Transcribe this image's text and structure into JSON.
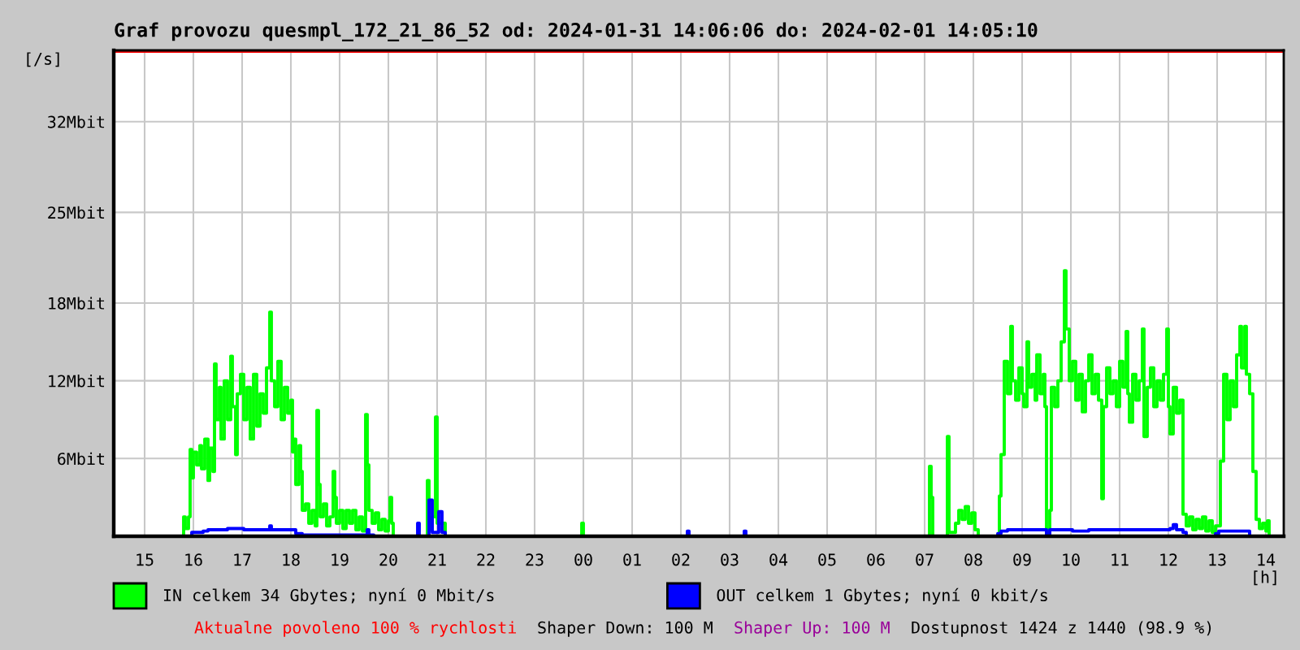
{
  "chart_data": {
    "type": "step",
    "title": "Graf provozu quesmpl_172_21_86_52 od: 2024-01-31 14:06:06 do: 2024-02-01 14:05:10",
    "xlabel": "[h]",
    "ylabel": "[/s]",
    "xlim": [
      "2024-01-31T14:22",
      "2024-02-01T14:22"
    ],
    "xticks": [
      {
        "value": "2024-01-31T15:00",
        "label": "15"
      },
      {
        "value": "2024-01-31T16:00",
        "label": "16"
      },
      {
        "value": "2024-01-31T17:00",
        "label": "17"
      },
      {
        "value": "2024-01-31T18:00",
        "label": "18"
      },
      {
        "value": "2024-01-31T19:00",
        "label": "19"
      },
      {
        "value": "2024-01-31T20:00",
        "label": "20"
      },
      {
        "value": "2024-01-31T21:00",
        "label": "21"
      },
      {
        "value": "2024-01-31T22:00",
        "label": "22"
      },
      {
        "value": "2024-01-31T23:00",
        "label": "23"
      },
      {
        "value": "2024-02-01T00:00",
        "label": "00"
      },
      {
        "value": "2024-02-01T01:00",
        "label": "01"
      },
      {
        "value": "2024-02-01T02:00",
        "label": "02"
      },
      {
        "value": "2024-02-01T03:00",
        "label": "03"
      },
      {
        "value": "2024-02-01T04:00",
        "label": "04"
      },
      {
        "value": "2024-02-01T05:00",
        "label": "05"
      },
      {
        "value": "2024-02-01T06:00",
        "label": "06"
      },
      {
        "value": "2024-02-01T07:00",
        "label": "07"
      },
      {
        "value": "2024-02-01T08:00",
        "label": "08"
      },
      {
        "value": "2024-02-01T09:00",
        "label": "09"
      },
      {
        "value": "2024-02-01T10:00",
        "label": "10"
      },
      {
        "value": "2024-02-01T11:00",
        "label": "11"
      },
      {
        "value": "2024-02-01T12:00",
        "label": "12"
      },
      {
        "value": "2024-02-01T13:00",
        "label": "13"
      },
      {
        "value": "2024-02-01T14:00",
        "label": "14"
      }
    ],
    "ylim": [
      0,
      37.5
    ],
    "yticks": [
      {
        "value": 6,
        "label": "6Mbit"
      },
      {
        "value": 12,
        "label": "12Mbit"
      },
      {
        "value": 18,
        "label": "18Mbit"
      },
      {
        "value": 25,
        "label": "25Mbit"
      },
      {
        "value": 32,
        "label": "32Mbit"
      }
    ],
    "grid": true,
    "legend": "bottom",
    "line_style": "solid",
    "ref_lines": [
      {
        "axis": "y",
        "value": 37.5,
        "color": "#ff0000"
      }
    ],
    "series": [
      {
        "name": "IN celkem 34 Gbytes; nyní 0 Mbit/s",
        "color": "#00ff00",
        "x": [
          "2024-01-31T14:22",
          "2024-01-31T15:46",
          "2024-01-31T15:48",
          "2024-01-31T15:50",
          "2024-01-31T15:54",
          "2024-01-31T15:56",
          "2024-01-31T15:58",
          "2024-01-31T16:00",
          "2024-01-31T16:04",
          "2024-01-31T16:08",
          "2024-01-31T16:10",
          "2024-01-31T16:14",
          "2024-01-31T16:18",
          "2024-01-31T16:20",
          "2024-01-31T16:24",
          "2024-01-31T16:26",
          "2024-01-31T16:28",
          "2024-01-31T16:32",
          "2024-01-31T16:34",
          "2024-01-31T16:38",
          "2024-01-31T16:42",
          "2024-01-31T16:46",
          "2024-01-31T16:48",
          "2024-01-31T16:52",
          "2024-01-31T16:54",
          "2024-01-31T16:58",
          "2024-01-31T17:02",
          "2024-01-31T17:06",
          "2024-01-31T17:10",
          "2024-01-31T17:14",
          "2024-01-31T17:18",
          "2024-01-31T17:22",
          "2024-01-31T17:26",
          "2024-01-31T17:30",
          "2024-01-31T17:34",
          "2024-01-31T17:36",
          "2024-01-31T17:40",
          "2024-01-31T17:44",
          "2024-01-31T17:48",
          "2024-01-31T17:52",
          "2024-01-31T17:56",
          "2024-01-31T18:00",
          "2024-01-31T18:02",
          "2024-01-31T18:04",
          "2024-01-31T18:06",
          "2024-01-31T18:10",
          "2024-01-31T18:12",
          "2024-01-31T18:14",
          "2024-01-31T18:18",
          "2024-01-31T18:22",
          "2024-01-31T18:26",
          "2024-01-31T18:30",
          "2024-01-31T18:32",
          "2024-01-31T18:34",
          "2024-01-31T18:36",
          "2024-01-31T18:40",
          "2024-01-31T18:44",
          "2024-01-31T18:48",
          "2024-01-31T18:52",
          "2024-01-31T18:54",
          "2024-01-31T18:56",
          "2024-01-31T19:00",
          "2024-01-31T19:04",
          "2024-01-31T19:08",
          "2024-01-31T19:12",
          "2024-01-31T19:16",
          "2024-01-31T19:20",
          "2024-01-31T19:24",
          "2024-01-31T19:28",
          "2024-01-31T19:32",
          "2024-01-31T19:34",
          "2024-01-31T19:36",
          "2024-01-31T19:40",
          "2024-01-31T19:44",
          "2024-01-31T19:48",
          "2024-01-31T19:52",
          "2024-01-31T19:56",
          "2024-01-31T20:00",
          "2024-01-31T20:02",
          "2024-01-31T20:04",
          "2024-01-31T20:06",
          "2024-01-31T20:48",
          "2024-01-31T20:50",
          "2024-01-31T20:54",
          "2024-01-31T20:58",
          "2024-01-31T21:00",
          "2024-01-31T21:06",
          "2024-01-31T21:10",
          "2024-01-31T23:58",
          "2024-02-01T00:00",
          "2024-02-01T07:06",
          "2024-02-01T07:08",
          "2024-02-01T07:10",
          "2024-02-01T07:28",
          "2024-02-01T07:30",
          "2024-02-01T07:38",
          "2024-02-01T07:42",
          "2024-02-01T07:46",
          "2024-02-01T07:50",
          "2024-02-01T07:54",
          "2024-02-01T07:58",
          "2024-02-01T08:02",
          "2024-02-01T08:06",
          "2024-02-01T08:32",
          "2024-02-01T08:34",
          "2024-02-01T08:38",
          "2024-02-01T08:42",
          "2024-02-01T08:46",
          "2024-02-01T08:48",
          "2024-02-01T08:52",
          "2024-02-01T08:56",
          "2024-02-01T09:00",
          "2024-02-01T09:02",
          "2024-02-01T09:06",
          "2024-02-01T09:08",
          "2024-02-01T09:12",
          "2024-02-01T09:16",
          "2024-02-01T09:18",
          "2024-02-01T09:22",
          "2024-02-01T09:26",
          "2024-02-01T09:28",
          "2024-02-01T09:30",
          "2024-02-01T09:34",
          "2024-02-01T09:36",
          "2024-02-01T09:40",
          "2024-02-01T09:44",
          "2024-02-01T09:48",
          "2024-02-01T09:52",
          "2024-02-01T09:54",
          "2024-02-01T09:58",
          "2024-02-01T10:02",
          "2024-02-01T10:06",
          "2024-02-01T10:10",
          "2024-02-01T10:14",
          "2024-02-01T10:18",
          "2024-02-01T10:22",
          "2024-02-01T10:26",
          "2024-02-01T10:30",
          "2024-02-01T10:34",
          "2024-02-01T10:38",
          "2024-02-01T10:40",
          "2024-02-01T10:44",
          "2024-02-01T10:48",
          "2024-02-01T10:52",
          "2024-02-01T10:56",
          "2024-02-01T11:00",
          "2024-02-01T11:04",
          "2024-02-01T11:08",
          "2024-02-01T11:10",
          "2024-02-01T11:12",
          "2024-02-01T11:16",
          "2024-02-01T11:20",
          "2024-02-01T11:24",
          "2024-02-01T11:28",
          "2024-02-01T11:30",
          "2024-02-01T11:34",
          "2024-02-01T11:38",
          "2024-02-01T11:42",
          "2024-02-01T11:46",
          "2024-02-01T11:50",
          "2024-02-01T11:54",
          "2024-02-01T11:58",
          "2024-02-01T12:00",
          "2024-02-01T12:02",
          "2024-02-01T12:06",
          "2024-02-01T12:10",
          "2024-02-01T12:14",
          "2024-02-01T12:18",
          "2024-02-01T12:22",
          "2024-02-01T12:26",
          "2024-02-01T12:30",
          "2024-02-01T12:34",
          "2024-02-01T12:38",
          "2024-02-01T12:42",
          "2024-02-01T12:46",
          "2024-02-01T12:50",
          "2024-02-01T12:54",
          "2024-02-01T12:58",
          "2024-02-01T13:04",
          "2024-02-01T13:08",
          "2024-02-01T13:12",
          "2024-02-01T13:16",
          "2024-02-01T13:20",
          "2024-02-01T13:24",
          "2024-02-01T13:28",
          "2024-02-01T13:30",
          "2024-02-01T13:34",
          "2024-02-01T13:36",
          "2024-02-01T13:40",
          "2024-02-01T13:44",
          "2024-02-01T13:48",
          "2024-02-01T13:52",
          "2024-02-01T13:56",
          "2024-02-01T14:00",
          "2024-02-01T14:02",
          "2024-02-01T14:04"
        ],
        "values": [
          0,
          0,
          1.5,
          0.6,
          1.5,
          6.7,
          4.5,
          6.5,
          5.5,
          7.0,
          5.2,
          7.5,
          4.3,
          6.8,
          5.0,
          13.3,
          9.0,
          11.5,
          7.5,
          12.0,
          9.0,
          13.9,
          10.0,
          6.3,
          11.0,
          12.5,
          9.0,
          11.5,
          7.5,
          12.5,
          8.5,
          11.0,
          9.5,
          13.0,
          17.3,
          12.0,
          10.0,
          13.5,
          9.0,
          11.5,
          9.5,
          10.5,
          6.5,
          7.5,
          4.0,
          7.0,
          5.0,
          2.0,
          2.5,
          1.0,
          2.0,
          0.8,
          9.7,
          4.0,
          1.5,
          2.5,
          0.8,
          1.5,
          5.0,
          3.0,
          1.0,
          2.0,
          0.6,
          2.0,
          1.0,
          2.0,
          0.5,
          1.5,
          0.4,
          9.4,
          5.5,
          2.0,
          1.0,
          1.8,
          0.5,
          1.3,
          0.4,
          1.2,
          3.0,
          1.0,
          0,
          4.3,
          0.5,
          1.5,
          9.2,
          1.0,
          1.0,
          0,
          1.0,
          0,
          5.4,
          3.0,
          0,
          7.7,
          0.3,
          1.0,
          2.0,
          1.3,
          2.3,
          1.0,
          1.8,
          0.5,
          0,
          3.1,
          6.3,
          13.5,
          11.0,
          16.2,
          12.0,
          10.5,
          13.0,
          11.0,
          10.0,
          15.0,
          11.5,
          12.5,
          10.5,
          14.0,
          11.0,
          12.5,
          10.0,
          0.2,
          2.0,
          11.5,
          10.0,
          12.0,
          15.0,
          20.5,
          16.0,
          12.0,
          13.5,
          10.5,
          12.5,
          9.6,
          12.0,
          14.0,
          11.0,
          12.5,
          10.5,
          2.9,
          10.0,
          13.0,
          11.0,
          12.0,
          10.0,
          13.5,
          11.5,
          15.8,
          11.0,
          8.8,
          12.5,
          10.5,
          12.0,
          16.0,
          7.7,
          11.5,
          13.0,
          10.0,
          12.0,
          10.5,
          12.5,
          16.0,
          10.0,
          7.9,
          11.5,
          9.5,
          10.5,
          1.7,
          0.8,
          1.5,
          0.5,
          1.3,
          0.6,
          1.5,
          0.4,
          1.2,
          0.3,
          0.8,
          5.8,
          12.5,
          9.0,
          12.0,
          10.0,
          14.0,
          16.2,
          13.0,
          16.2,
          12.5,
          11.0,
          5.0,
          1.3,
          0.6,
          1.0,
          0.4,
          1.2,
          0
        ]
      },
      {
        "name": "OUT celkem 1 Gbytes; nyní 0 kbit/s",
        "color": "#0000ff",
        "x": [
          "2024-01-31T14:22",
          "2024-01-31T15:56",
          "2024-01-31T15:58",
          "2024-01-31T16:12",
          "2024-01-31T16:18",
          "2024-01-31T16:28",
          "2024-01-31T16:42",
          "2024-01-31T17:02",
          "2024-01-31T17:22",
          "2024-01-31T17:34",
          "2024-01-31T17:36",
          "2024-01-31T18:02",
          "2024-01-31T18:06",
          "2024-01-31T18:14",
          "2024-01-31T19:34",
          "2024-01-31T19:36",
          "2024-01-31T19:42",
          "2024-01-31T20:36",
          "2024-01-31T20:38",
          "2024-01-31T20:50",
          "2024-01-31T20:54",
          "2024-01-31T21:02",
          "2024-01-31T21:06",
          "2024-01-31T21:10",
          "2024-02-01T02:08",
          "2024-02-01T02:10",
          "2024-02-01T03:18",
          "2024-02-01T03:20",
          "2024-02-01T08:30",
          "2024-02-01T08:34",
          "2024-02-01T08:42",
          "2024-02-01T09:02",
          "2024-02-01T09:22",
          "2024-02-01T09:30",
          "2024-02-01T09:34",
          "2024-02-01T10:02",
          "2024-02-01T10:22",
          "2024-02-01T10:42",
          "2024-02-01T11:02",
          "2024-02-01T11:22",
          "2024-02-01T11:42",
          "2024-02-01T12:02",
          "2024-02-01T12:06",
          "2024-02-01T12:10",
          "2024-02-01T12:18",
          "2024-02-01T12:22",
          "2024-02-01T12:58",
          "2024-02-01T13:02",
          "2024-02-01T13:38",
          "2024-02-01T13:40"
        ],
        "values": [
          0,
          0,
          0.3,
          0.4,
          0.5,
          0.5,
          0.6,
          0.5,
          0.5,
          0.8,
          0.5,
          0.5,
          0.2,
          0.1,
          0.5,
          0.1,
          0,
          1.0,
          0,
          2.8,
          0.3,
          1.9,
          0.3,
          0,
          0.4,
          0,
          0.4,
          0,
          0.2,
          0.4,
          0.5,
          0.5,
          0.5,
          0,
          0.5,
          0.4,
          0.5,
          0.5,
          0.5,
          0.5,
          0.5,
          0.6,
          0.9,
          0.5,
          0.3,
          0,
          0.2,
          0.4,
          0.4,
          0
        ]
      }
    ],
    "annotations": [
      "Aktualne povoleno 100 % rychlosti",
      "Shaper Down: 100 M",
      "Shaper Up: 100 M",
      "Dostupnost 1424 z 1440 (98.9 %)"
    ]
  }
}
